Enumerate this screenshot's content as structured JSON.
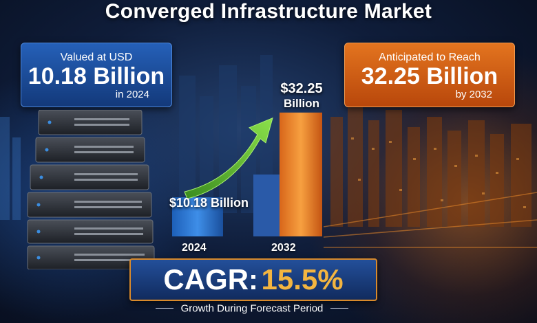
{
  "title": "Converged Infrastructure Market",
  "left_box": {
    "line1": "Valued at USD",
    "line2": "10.18 Billion",
    "line3": "in 2024"
  },
  "right_box": {
    "line1": "Anticipated to Reach",
    "line2": "32.25 Billion",
    "line3": "by 2032"
  },
  "cagr": {
    "label": "CAGR:",
    "value": "15.5%"
  },
  "subtitle": "Growth During Forecast Period",
  "colors": {
    "bar_2024": "#2a78d4",
    "bar_2032": "#f08a24",
    "arrow": "#6ec23a",
    "cagr_value": "#f3b540"
  },
  "chart_data": {
    "type": "bar",
    "categories": [
      "2024",
      "2032"
    ],
    "values": [
      10.18,
      32.25
    ],
    "data_labels": [
      "$10.18 Billion",
      "$32.25 Billion"
    ],
    "data_label_lines": [
      [
        "$10.18 Billion"
      ],
      [
        "$32.25",
        "Billion"
      ]
    ],
    "units": "USD Billion",
    "ylim": [
      0,
      34
    ],
    "grid": false,
    "legend": false
  }
}
